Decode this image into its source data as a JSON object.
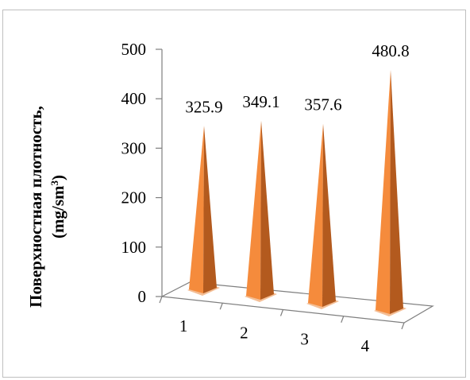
{
  "chart_data": {
    "type": "bar",
    "style": "3d-pyramid",
    "categories": [
      "1",
      "2",
      "3",
      "4"
    ],
    "values": [
      325.9,
      349.1,
      357.6,
      480.8
    ],
    "data_labels": [
      "325.9",
      "349.1",
      "357.6",
      "480.8"
    ],
    "ylabel_main": "Поверхностная плотность,",
    "ylabel_unit": "(mg/sm",
    "ylabel_unit_sup": "3",
    "ylabel_unit_close": ")",
    "ylim": [
      0,
      500
    ],
    "yticks": [
      "0",
      "100",
      "200",
      "300",
      "400",
      "500"
    ],
    "grid": false,
    "legend": "none",
    "colors": {
      "bar_light": "#f58b3c",
      "bar_dark": "#b35a1e",
      "shadow": "#f3b78a",
      "axis": "#7f7f7f",
      "frame": "#bfbfbf"
    }
  }
}
